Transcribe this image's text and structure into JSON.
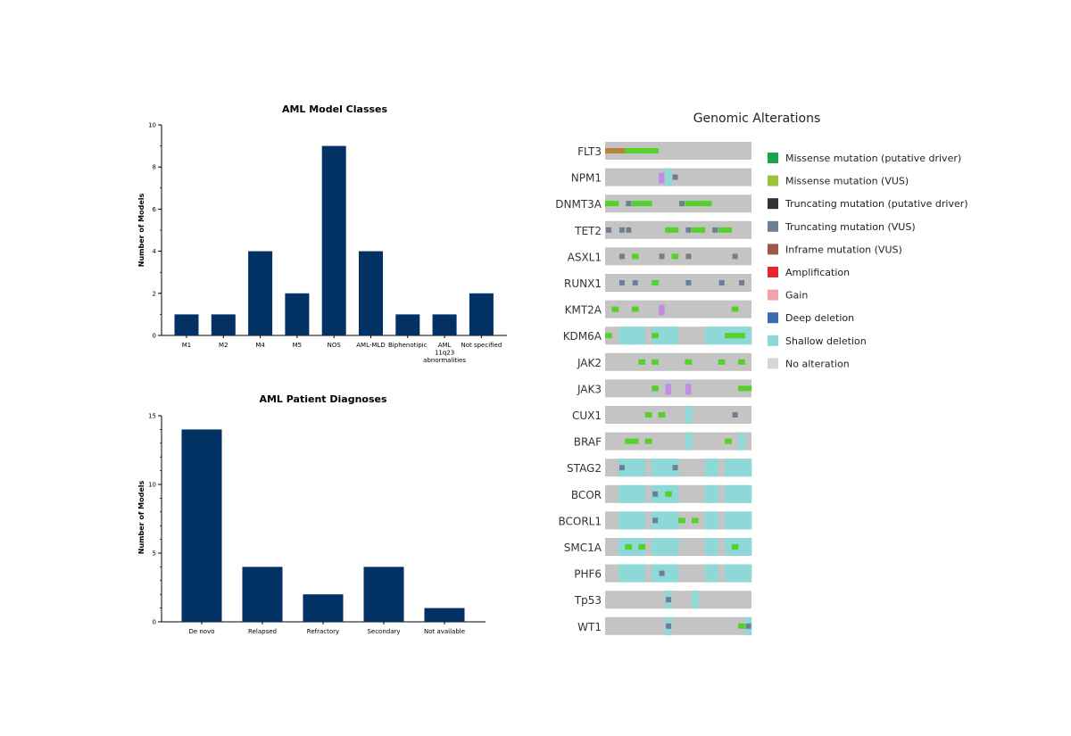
{
  "chart_data": [
    {
      "type": "bar",
      "title": "AML Model Classes",
      "ylabel": "Number of Models",
      "xlabel": "",
      "categories": [
        "M1",
        "M2",
        "M4",
        "M5",
        "NOS",
        "AML-MLD",
        "Biphenotipic",
        "AML 11q23 abnormalities",
        "Not specified"
      ],
      "category_lines": [
        [
          "M1"
        ],
        [
          "M2"
        ],
        [
          "M4"
        ],
        [
          "M5"
        ],
        [
          "NOS"
        ],
        [
          "AML-MLD"
        ],
        [
          "Biphenotipic"
        ],
        [
          "AML",
          "11q23",
          "abnormalities"
        ],
        [
          "Not specified"
        ]
      ],
      "values": [
        1,
        1,
        4,
        2,
        9,
        4,
        1,
        1,
        2
      ],
      "ylim": [
        0,
        10
      ],
      "yticks": [
        0,
        2,
        4,
        6,
        8,
        10
      ],
      "color": "#023263",
      "grid": false
    },
    {
      "type": "bar",
      "title": "AML Patient Diagnoses",
      "ylabel": "Number of Models",
      "xlabel": "",
      "categories": [
        "De novo",
        "Relapsed",
        "Refractory",
        "Secondary",
        "Not available"
      ],
      "values": [
        14,
        4,
        2,
        4,
        1
      ],
      "ylim": [
        0,
        15
      ],
      "yticks": [
        0,
        5,
        10,
        15
      ],
      "color": "#023263",
      "grid": false
    },
    {
      "type": "heatmap",
      "title": "Genomic Alterations",
      "n_samples": 22,
      "genes": [
        "FLT3",
        "NPM1",
        "DNMT3A",
        "TET2",
        "ASXL1",
        "RUNX1",
        "KMT2A",
        "KDM6A",
        "JAK2",
        "JAK3",
        "CUX1",
        "BRAF",
        "STAG2",
        "BCOR",
        "BCORL1",
        "SMC1A",
        "PHF6",
        "Tp53",
        "WT1"
      ],
      "legend": [
        {
          "key": "missense_driver",
          "label": "Missense mutation (putative driver)",
          "color": "#1aa34a"
        },
        {
          "key": "missense_vus",
          "label": "Missense mutation (VUS)",
          "color": "#9ac43c"
        },
        {
          "key": "truncating_driver",
          "label": "Truncating mutation (putative driver)",
          "color": "#333333"
        },
        {
          "key": "truncating_vus",
          "label": "Truncating mutation (VUS)",
          "color": "#6d7f92"
        },
        {
          "key": "inframe_vus",
          "label": "Inframe mutation (VUS)",
          "color": "#a0574a"
        },
        {
          "key": "amplification",
          "label": "Amplification",
          "color": "#e5262f"
        },
        {
          "key": "gain",
          "label": "Gain",
          "color": "#f2a3aa"
        },
        {
          "key": "deep_deletion",
          "label": "Deep deletion",
          "color": "#3a6ab0"
        },
        {
          "key": "shallow_deletion",
          "label": "Shallow deletion",
          "color": "#8fd8d8"
        },
        {
          "key": "no_alteration",
          "label": "No alteration",
          "color": "#d6d6d6"
        }
      ],
      "colors": {
        "background": "#c4c4c4",
        "shallow": "#8fd8d8",
        "missense": "#55d12b",
        "truncating": "#6d7f92",
        "inframe": "#b5843a",
        "other": "#c58be3"
      },
      "rows": [
        {
          "shallow": [],
          "marks": [
            [
              0,
              "inframe"
            ],
            [
              1,
              "inframe"
            ],
            [
              2,
              "inframe"
            ],
            [
              3,
              "missense"
            ],
            [
              4,
              "missense"
            ],
            [
              5,
              "missense"
            ],
            [
              6,
              "missense"
            ],
            [
              7,
              "missense"
            ]
          ]
        },
        {
          "shallow": [
            9
          ],
          "marks": [
            [
              8,
              "other"
            ],
            [
              10,
              "truncating"
            ]
          ]
        },
        {
          "shallow": [],
          "marks": [
            [
              0,
              "missense"
            ],
            [
              1,
              "missense"
            ],
            [
              3,
              "truncating"
            ],
            [
              4,
              "missense"
            ],
            [
              5,
              "missense"
            ],
            [
              6,
              "missense"
            ],
            [
              11,
              "truncating"
            ],
            [
              12,
              "missense"
            ],
            [
              13,
              "missense"
            ],
            [
              14,
              "missense"
            ],
            [
              15,
              "missense"
            ]
          ]
        },
        {
          "shallow": [],
          "marks": [
            [
              0,
              "truncating"
            ],
            [
              2,
              "truncating"
            ],
            [
              3,
              "truncating"
            ],
            [
              9,
              "missense"
            ],
            [
              10,
              "missense"
            ],
            [
              12,
              "truncating"
            ],
            [
              13,
              "missense"
            ],
            [
              14,
              "missense"
            ],
            [
              16,
              "truncating"
            ],
            [
              17,
              "missense"
            ],
            [
              18,
              "missense"
            ]
          ]
        },
        {
          "shallow": [],
          "marks": [
            [
              2,
              "truncating"
            ],
            [
              4,
              "missense"
            ],
            [
              8,
              "truncating"
            ],
            [
              10,
              "missense"
            ],
            [
              12,
              "truncating"
            ],
            [
              19,
              "truncating"
            ]
          ]
        },
        {
          "shallow": [],
          "marks": [
            [
              2,
              "truncating"
            ],
            [
              4,
              "truncating"
            ],
            [
              7,
              "missense"
            ],
            [
              12,
              "truncating"
            ],
            [
              17,
              "truncating"
            ],
            [
              20,
              "truncating"
            ]
          ]
        },
        {
          "shallow": [],
          "marks": [
            [
              1,
              "missense"
            ],
            [
              4,
              "missense"
            ],
            [
              8,
              "other"
            ],
            [
              19,
              "missense"
            ]
          ]
        },
        {
          "shallow": [
            2,
            3,
            3.5,
            4,
            5,
            7,
            8,
            9,
            10,
            15,
            16,
            17,
            18,
            19,
            20,
            21
          ],
          "marks": [
            [
              0,
              "missense"
            ],
            [
              7,
              "missense"
            ],
            [
              18,
              "missense"
            ],
            [
              19,
              "missense"
            ],
            [
              20,
              "missense"
            ]
          ]
        },
        {
          "shallow": [],
          "marks": [
            [
              5,
              "missense"
            ],
            [
              7,
              "missense"
            ],
            [
              12,
              "missense"
            ],
            [
              17,
              "missense"
            ],
            [
              20,
              "missense"
            ]
          ]
        },
        {
          "shallow": [],
          "marks": [
            [
              7,
              "truncating"
            ],
            [
              7,
              "missense"
            ],
            [
              9,
              "other"
            ],
            [
              12,
              "other"
            ],
            [
              20,
              "missense"
            ],
            [
              21,
              "missense"
            ]
          ]
        },
        {
          "shallow": [
            12
          ],
          "marks": [
            [
              6,
              "missense"
            ],
            [
              8,
              "missense"
            ],
            [
              19,
              "truncating"
            ]
          ]
        },
        {
          "shallow": [
            12,
            20
          ],
          "marks": [
            [
              3,
              "missense"
            ],
            [
              4,
              "missense"
            ],
            [
              6,
              "missense"
            ],
            [
              18,
              "missense"
            ]
          ]
        },
        {
          "shallow": [
            2,
            3,
            4,
            5,
            7,
            8,
            9,
            10,
            15,
            16,
            18,
            19,
            20,
            21
          ],
          "marks": [
            [
              2,
              "truncating"
            ],
            [
              10,
              "truncating"
            ]
          ]
        },
        {
          "shallow": [
            2,
            3,
            4,
            5,
            7,
            8,
            9,
            10,
            15,
            16,
            18,
            19,
            20,
            21
          ],
          "marks": [
            [
              7,
              "truncating"
            ],
            [
              9,
              "missense"
            ]
          ]
        },
        {
          "shallow": [
            2,
            3,
            4,
            5,
            7,
            8,
            9,
            10,
            15,
            16,
            18,
            19,
            20,
            21
          ],
          "marks": [
            [
              7,
              "truncating"
            ],
            [
              11,
              "missense"
            ],
            [
              13,
              "missense"
            ]
          ]
        },
        {
          "shallow": [
            2,
            3,
            4,
            5,
            7,
            8,
            9,
            10,
            15,
            16,
            18,
            19,
            20,
            21
          ],
          "marks": [
            [
              3,
              "missense"
            ],
            [
              5,
              "missense"
            ],
            [
              19,
              "missense"
            ]
          ]
        },
        {
          "shallow": [
            2,
            3,
            4,
            5,
            7,
            8,
            9,
            10,
            15,
            16,
            18,
            19,
            20,
            21
          ],
          "marks": [
            [
              8,
              "truncating"
            ]
          ]
        },
        {
          "shallow": [
            9,
            13
          ],
          "marks": [
            [
              9,
              "truncating"
            ]
          ]
        },
        {
          "shallow": [
            9,
            21
          ],
          "marks": [
            [
              9,
              "truncating"
            ],
            [
              20,
              "missense"
            ],
            [
              21,
              "truncating"
            ]
          ]
        }
      ]
    }
  ]
}
